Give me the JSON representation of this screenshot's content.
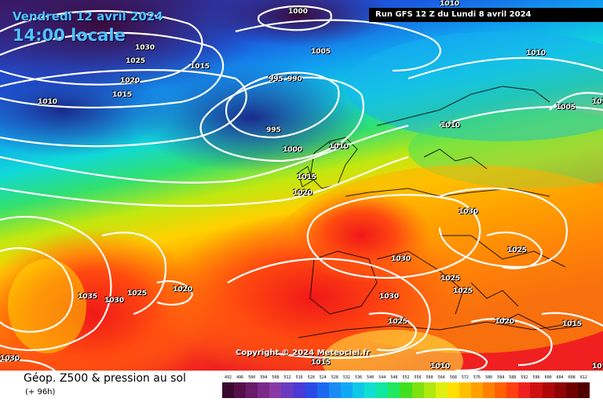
{
  "header": {
    "valid_date": "Vendredi 12 avril 2024",
    "valid_time": "14:00 locale",
    "run_info": "Run GFS 12 Z du Lundi 8 avril 2024"
  },
  "copyright": "Copyright © 2024 Meteociel.fr",
  "footer": {
    "title": "Géop. Z500 & pression au sol",
    "subtitle": "(+ 96h)"
  },
  "isobar_labels": [
    "1000",
    "1005",
    "1010",
    "1030",
    "1025",
    "1020",
    "1015",
    "1015",
    "1010",
    "995",
    "990",
    "995",
    "1000",
    "1010",
    "1015",
    "1020",
    "1010",
    "1010",
    "1005",
    "1010",
    "1030",
    "1030",
    "1025",
    "1025",
    "1025",
    "1030",
    "1035",
    "1030",
    "1025",
    "1020",
    "1030",
    "1025",
    "1020",
    "1015",
    "1010",
    "1015",
    "1010"
  ],
  "legend": {
    "values": [
      "492",
      "496",
      "500",
      "504",
      "508",
      "512",
      "516",
      "520",
      "524",
      "528",
      "532",
      "536",
      "540",
      "544",
      "548",
      "552",
      "556",
      "560",
      "564",
      "568",
      "572",
      "576",
      "580",
      "584",
      "588",
      "592",
      "596",
      "600",
      "604",
      "608",
      "612"
    ],
    "colors": [
      "#3a0a2e",
      "#55104a",
      "#6a1a6a",
      "#7a2a8a",
      "#8a3aa6",
      "#6a3ac0",
      "#4a3ad8",
      "#2a4ae8",
      "#1a6af0",
      "#1a8af5",
      "#10a8f5",
      "#10c8e8",
      "#10e0d0",
      "#10e8a0",
      "#20e860",
      "#40e020",
      "#80e010",
      "#b0e810",
      "#e0f010",
      "#ffe000",
      "#ffc000",
      "#ffa000",
      "#ff8000",
      "#ff6000",
      "#ff4010",
      "#f02020",
      "#d01010",
      "#b00808",
      "#900404",
      "#700000",
      "#500000"
    ]
  }
}
